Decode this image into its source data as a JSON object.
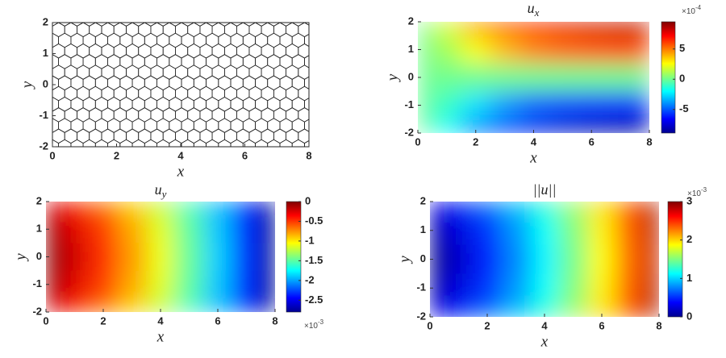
{
  "chart_data": [
    {
      "type": "mesh",
      "xlabel": "x",
      "ylabel": "y",
      "xlim": [
        0,
        8
      ],
      "ylim": [
        -2,
        2
      ],
      "xticks": [
        0,
        2,
        4,
        6,
        8
      ],
      "yticks": [
        -2,
        -1,
        0,
        1,
        2
      ]
    },
    {
      "type": "heatmap",
      "title": {
        "base": "u",
        "sub": "x"
      },
      "xlabel": "x",
      "ylabel": "y",
      "xlim": [
        0,
        8
      ],
      "ylim": [
        -2,
        2
      ],
      "xticks": [
        0,
        2,
        4,
        6,
        8
      ],
      "yticks": [
        -2,
        -1,
        0,
        1,
        2
      ],
      "x": [
        0,
        1,
        2,
        3,
        4,
        5,
        6,
        7,
        8
      ],
      "y": [
        2,
        1,
        0,
        -1,
        -2
      ],
      "z": [
        [
          0,
          2,
          4.5,
          6,
          7,
          7.6,
          8,
          8.3,
          8.5
        ],
        [
          0,
          1,
          2.5,
          3.8,
          4.8,
          5.3,
          5.6,
          5.8,
          5.9
        ],
        [
          0,
          0,
          0,
          0,
          0,
          0,
          0,
          0,
          0
        ],
        [
          0,
          -1,
          -2.5,
          -3.8,
          -4.8,
          -5.3,
          -5.6,
          -5.8,
          -5.9
        ],
        [
          0,
          -2,
          -4.5,
          -6,
          -7,
          -7.6,
          -8,
          -8.3,
          -8.5
        ]
      ],
      "clim": [
        -8.9,
        9.5
      ],
      "cticks": [
        -5,
        0,
        5
      ],
      "cscale": {
        "base": "×10",
        "exp": "-4"
      }
    },
    {
      "type": "heatmap",
      "title": {
        "base": "u",
        "sub": "y"
      },
      "xlabel": "x",
      "ylabel": "y",
      "xlim": [
        0,
        8
      ],
      "ylim": [
        -2,
        2
      ],
      "xticks": [
        0,
        2,
        4,
        6,
        8
      ],
      "yticks": [
        -2,
        -1,
        0,
        1,
        2
      ],
      "x": [
        0,
        1,
        2,
        3,
        4,
        5,
        6,
        7,
        8
      ],
      "y": [
        2,
        1,
        0,
        -1,
        -2
      ],
      "z": [
        [
          -0.24,
          -0.43,
          -0.66,
          -0.92,
          -1.22,
          -1.56,
          -1.94,
          -2.35,
          -2.8
        ],
        [
          -0.06,
          -0.27,
          -0.52,
          -0.81,
          -1.13,
          -1.49,
          -1.9,
          -2.33,
          -2.8
        ],
        [
          0,
          -0.22,
          -0.48,
          -0.77,
          -1.1,
          -1.47,
          -1.88,
          -2.32,
          -2.8
        ],
        [
          -0.06,
          -0.27,
          -0.52,
          -0.81,
          -1.13,
          -1.49,
          -1.9,
          -2.33,
          -2.8
        ],
        [
          -0.24,
          -0.43,
          -0.66,
          -0.92,
          -1.22,
          -1.56,
          -1.94,
          -2.35,
          -2.8
        ]
      ],
      "clim": [
        -2.8,
        0
      ],
      "cticks": [
        0,
        -0.5,
        -1,
        -1.5,
        -2,
        -2.5
      ],
      "cscale": {
        "base": "×10",
        "exp": "-3"
      }
    },
    {
      "type": "heatmap",
      "title": {
        "base": "||u||"
      },
      "xlabel": "x",
      "ylabel": "y",
      "xlim": [
        0,
        8
      ],
      "ylim": [
        -2,
        2
      ],
      "xticks": [
        0,
        2,
        4,
        6,
        8
      ],
      "yticks": [
        -2,
        -1,
        0,
        1,
        2
      ],
      "x": [
        0,
        1,
        2,
        3,
        4,
        5,
        6,
        7,
        8
      ],
      "y": [
        2,
        1,
        0,
        -1,
        -2
      ],
      "z": [
        [
          0.3,
          0.45,
          0.68,
          0.94,
          1.24,
          1.58,
          1.96,
          2.4,
          2.9
        ],
        [
          0.1,
          0.28,
          0.53,
          0.82,
          1.14,
          1.5,
          1.91,
          2.35,
          2.85
        ],
        [
          0,
          0.22,
          0.48,
          0.77,
          1.1,
          1.47,
          1.88,
          2.32,
          2.8
        ],
        [
          0.1,
          0.28,
          0.53,
          0.82,
          1.14,
          1.5,
          1.91,
          2.35,
          2.85
        ],
        [
          0.3,
          0.45,
          0.68,
          0.94,
          1.24,
          1.58,
          1.96,
          2.4,
          2.9
        ]
      ],
      "clim": [
        0,
        3
      ],
      "cticks": [
        0,
        1,
        2,
        3
      ],
      "cscale": {
        "base": "×10",
        "exp": "-3"
      }
    }
  ]
}
